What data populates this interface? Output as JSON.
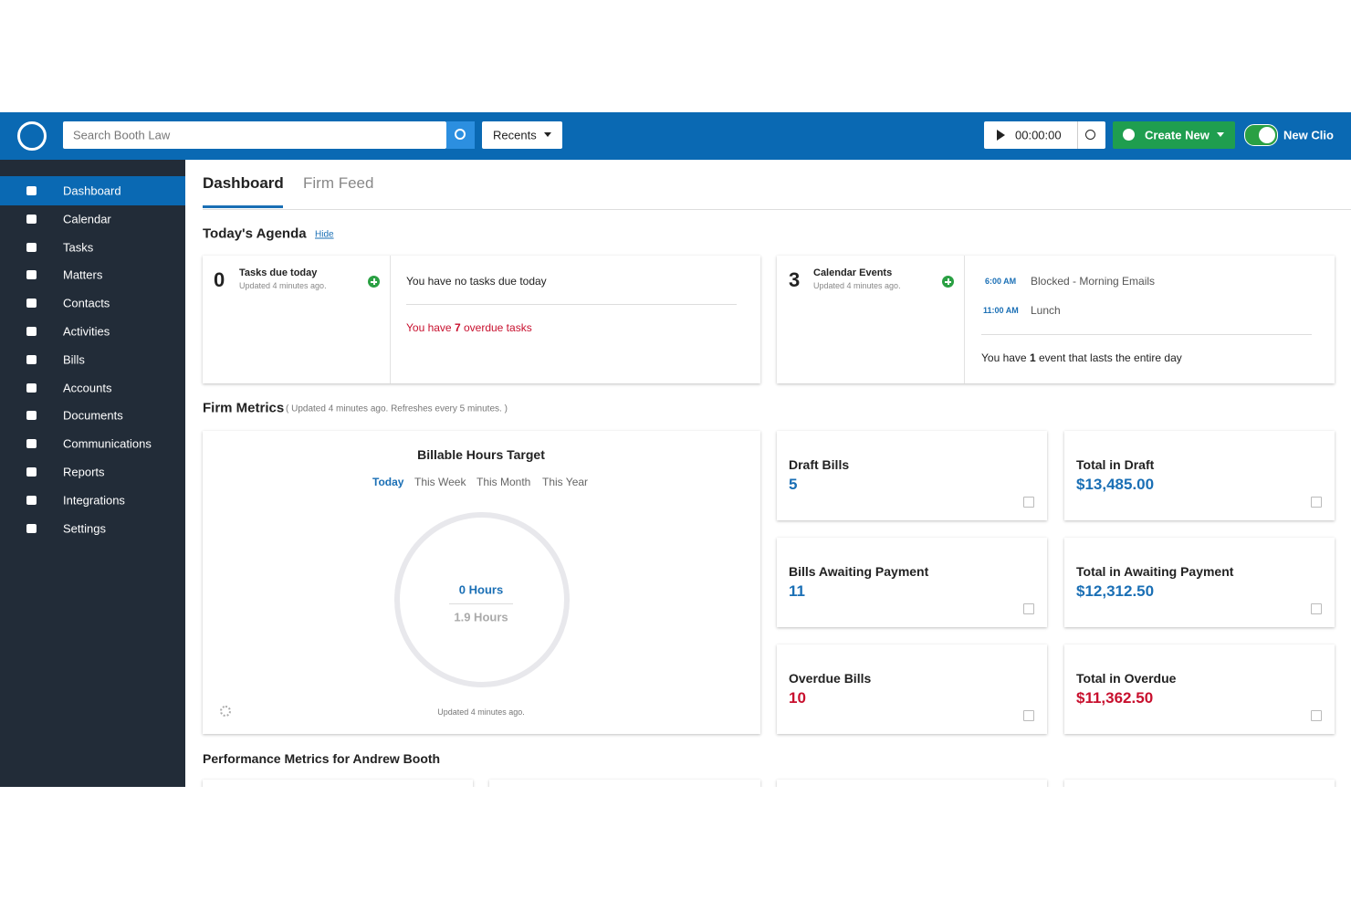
{
  "header": {
    "search_placeholder": "Search Booth Law",
    "recents": "Recents",
    "timer": "00:00:00",
    "create_new": "Create New",
    "new_clio": "New Clio"
  },
  "sidebar": {
    "items": [
      "Dashboard",
      "Calendar",
      "Tasks",
      "Matters",
      "Contacts",
      "Activities",
      "Bills",
      "Accounts",
      "Documents",
      "Communications",
      "Reports",
      "Integrations",
      "Settings"
    ]
  },
  "tabs": [
    "Dashboard",
    "Firm Feed"
  ],
  "agenda": {
    "title": "Today's Agenda",
    "hide": "Hide",
    "tasks": {
      "count": 0,
      "label": "Tasks due today",
      "updated": "Updated 4 minutes ago.",
      "no_tasks": "You have no tasks due today",
      "overdue_prefix": "You have",
      "overdue_count": 7,
      "overdue_suffix": "overdue tasks"
    },
    "calendar": {
      "count": 3,
      "label": "Calendar Events",
      "updated": "Updated 4 minutes ago.",
      "events": [
        {
          "time": "6:00 AM",
          "title": "Blocked - Morning Emails"
        },
        {
          "time": "11:00 AM",
          "title": "Lunch"
        }
      ],
      "all_day_prefix": "You have",
      "all_day_count": 1,
      "all_day_suffix": "event that lasts the entire day"
    }
  },
  "firm_metrics": {
    "title": "Firm Metrics",
    "note": "( Updated 4 minutes ago. Refreshes every 5 minutes. )",
    "billable": {
      "title": "Billable Hours Target",
      "periods": [
        "Today",
        "This Week",
        "This Month",
        "This Year"
      ],
      "value": "0 Hours",
      "target": "1.9 Hours",
      "updated": "Updated 4 minutes ago."
    },
    "cards": [
      {
        "label": "Draft Bills",
        "value": "5",
        "color": "#1a6fb5"
      },
      {
        "label": "Total in Draft",
        "value": "$13,485.00",
        "color": "#1a6fb5"
      },
      {
        "label": "Bills Awaiting Payment",
        "value": "11",
        "color": "#1a6fb5"
      },
      {
        "label": "Total in Awaiting Payment",
        "value": "$12,312.50",
        "color": "#1a6fb5"
      },
      {
        "label": "Overdue Bills",
        "value": "10",
        "color": "#c8102e"
      },
      {
        "label": "Total in Overdue",
        "value": "$11,362.50",
        "color": "#c8102e"
      }
    ]
  },
  "performance": {
    "title": "Performance Metrics for Andrew Booth"
  }
}
